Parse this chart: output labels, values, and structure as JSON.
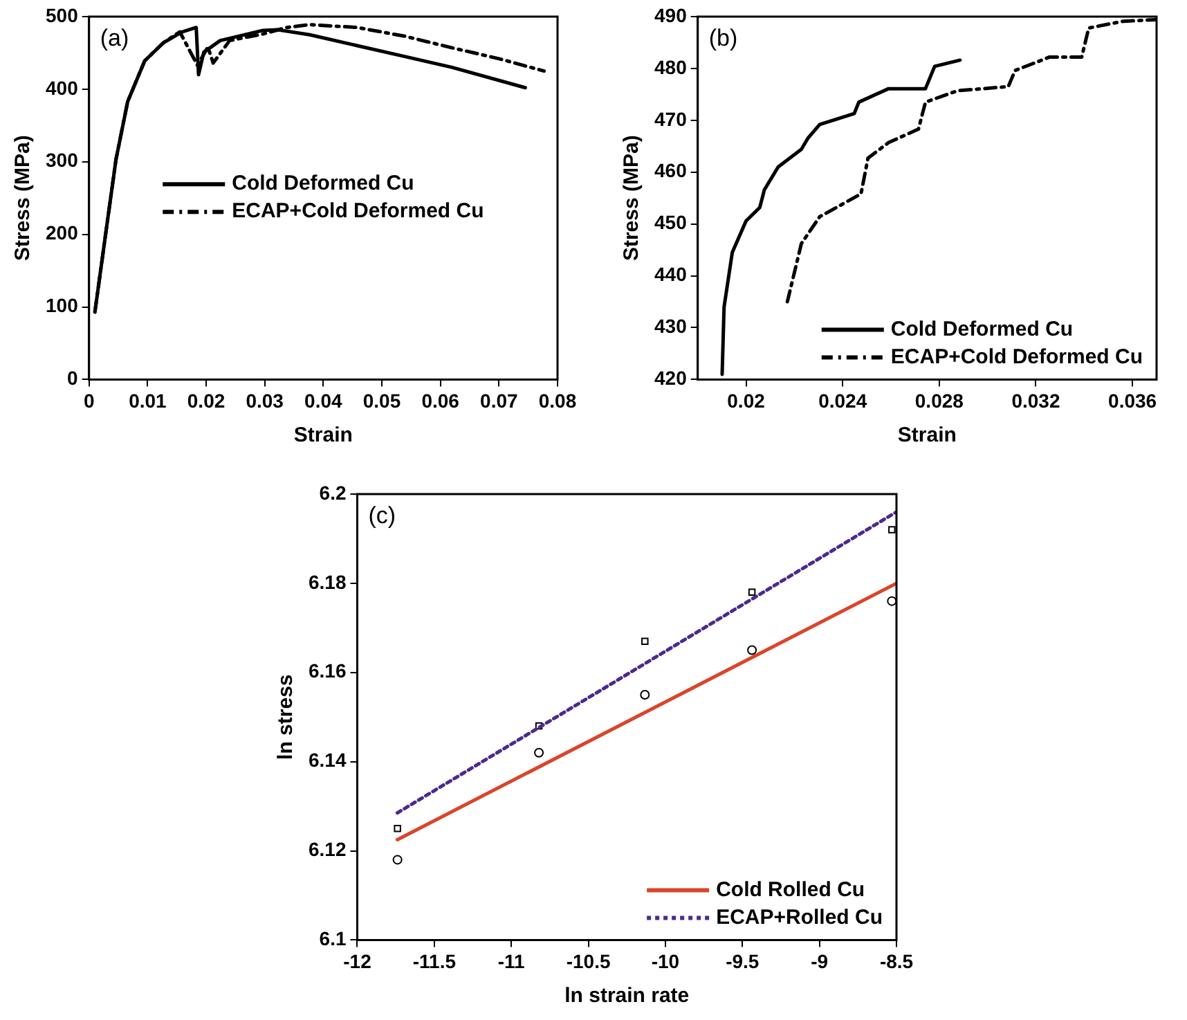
{
  "chart_data": [
    {
      "type": "line",
      "xlabel": "Strain",
      "ylabel": "Stress (MPa)",
      "annotations": [
        "(a)"
      ],
      "legend": "center",
      "xlim": [
        0,
        0.08
      ],
      "ylim": [
        0,
        500
      ],
      "xticks": [
        0,
        0.01,
        0.02,
        0.03,
        0.04,
        0.05,
        0.06,
        0.07,
        0.08
      ],
      "yticks": [
        0,
        100,
        200,
        300,
        400,
        500
      ],
      "series": [
        {
          "name": "Cold Deformed Cu",
          "color": "#000000",
          "line_style": "solid",
          "x": [
            0.001,
            0.003,
            0.0046,
            0.0066,
            0.0095,
            0.0127,
            0.0159,
            0.0183,
            0.0187,
            0.0196,
            0.0224,
            0.0297,
            0.0321,
            0.0377,
            0.0458,
            0.0539,
            0.062,
            0.0745
          ],
          "values": [
            93,
            210,
            303,
            383,
            439,
            464,
            479,
            485,
            420,
            451,
            467,
            481,
            482,
            475,
            460,
            445,
            430,
            402
          ]
        },
        {
          "name": "ECAP+Cold Deformed Cu",
          "color": "#000000",
          "line_style": "dashed",
          "x": [
            0.001,
            0.003,
            0.0046,
            0.0066,
            0.0095,
            0.0127,
            0.0155,
            0.0185,
            0.0203,
            0.0212,
            0.024,
            0.0297,
            0.0337,
            0.0377,
            0.0458,
            0.0539,
            0.062,
            0.07,
            0.0777
          ],
          "values": [
            93,
            210,
            303,
            383,
            439,
            464,
            479,
            433,
            458,
            436,
            467,
            476,
            485,
            489,
            485,
            473,
            457,
            442,
            425
          ]
        }
      ]
    },
    {
      "type": "line",
      "xlabel": "Strain",
      "ylabel": "Stress (MPa)",
      "annotations": [
        "(b)"
      ],
      "legend": "bottom right",
      "xlim": [
        0.018,
        0.037
      ],
      "ylim": [
        420,
        490
      ],
      "xticks": [
        0.02,
        0.024,
        0.028,
        0.032,
        0.036
      ],
      "yticks": [
        420,
        430,
        440,
        450,
        460,
        470,
        480,
        490
      ],
      "series": [
        {
          "name": "Cold Deformed Cu",
          "color": "#000000",
          "line_style": "solid",
          "x": [
            0.01901,
            0.01909,
            0.01943,
            0.02,
            0.02057,
            0.02076,
            0.02133,
            0.02229,
            0.02257,
            0.02305,
            0.02448,
            0.02467,
            0.0259,
            0.02743,
            0.02781,
            0.02886
          ],
          "values": [
            421,
            434,
            444.5,
            450.6,
            453.2,
            456.6,
            461,
            464.4,
            466.6,
            469.2,
            471.3,
            473.5,
            476.1,
            476.1,
            480.4,
            481.6
          ]
        },
        {
          "name": "ECAP+Cold Deformed Cu",
          "color": "#000000",
          "line_style": "dashed",
          "x": [
            0.02171,
            0.02229,
            0.02305,
            0.02476,
            0.02505,
            0.0259,
            0.02714,
            0.02743,
            0.02876,
            0.03086,
            0.03114,
            0.03257,
            0.0339,
            0.03419,
            0.03562,
            0.03695
          ],
          "values": [
            435,
            446.2,
            451.4,
            455.8,
            462.7,
            465.7,
            468.3,
            473.5,
            475.7,
            476.5,
            479.6,
            482.2,
            482.2,
            487.8,
            489.1,
            489.4
          ]
        }
      ]
    },
    {
      "type": "scatter",
      "xlabel": "ln strain rate",
      "ylabel": "ln stress",
      "annotations": [
        "(c)"
      ],
      "legend": "bottom right",
      "xlim": [
        -12,
        -8.5
      ],
      "ylim": [
        6.1,
        6.2
      ],
      "xticks": [
        -12,
        -11.5,
        -11,
        -10.5,
        -10,
        -9.5,
        -9,
        -8.5
      ],
      "yticks": [
        6.1,
        6.12,
        6.14,
        6.16,
        6.18,
        6.2
      ],
      "series": [
        {
          "type": "line",
          "name": "Cold Rolled Cu",
          "color": "#d9452b",
          "line_style": "solid",
          "x": [
            -11.74,
            -8.5
          ],
          "values": [
            6.1225,
            6.18
          ]
        },
        {
          "type": "line",
          "name": "ECAP+Rolled Cu",
          "color": "#4b2a8c",
          "line_style": "dotted",
          "x": [
            -11.74,
            -8.5
          ],
          "values": [
            6.1285,
            6.196
          ]
        },
        {
          "type": "scatter",
          "color": "#000000",
          "marker": "circle",
          "x": [
            -11.739,
            -10.821,
            -10.133,
            -9.438,
            -8.53
          ],
          "values": [
            6.118,
            6.142,
            6.155,
            6.165,
            6.176
          ]
        },
        {
          "type": "scatter",
          "color": "#000000",
          "marker": "square",
          "x": [
            -11.739,
            -10.821,
            -10.133,
            -9.438,
            -8.53
          ],
          "values": [
            6.125,
            6.148,
            6.167,
            6.178,
            6.192
          ]
        }
      ]
    }
  ]
}
